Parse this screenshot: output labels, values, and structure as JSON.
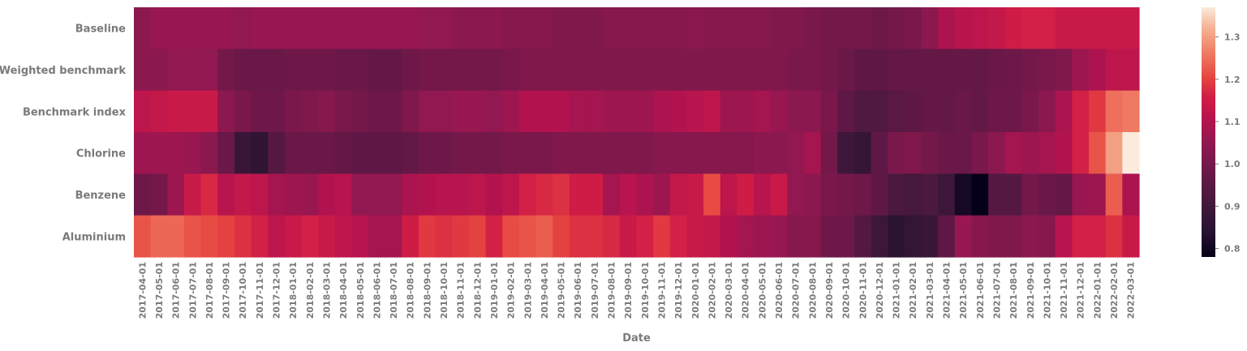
{
  "chart_data": {
    "type": "heatmap",
    "xlabel": "Date",
    "ylabel": "",
    "colormap": "rocket",
    "vmin": 0.78,
    "vmax": 1.37,
    "colorbar_ticks": [
      0.8,
      0.9,
      1.0,
      1.1,
      1.2,
      1.3
    ],
    "colorbar_tick_labels": [
      "0.8",
      "0.9",
      "1.0",
      "1.1",
      "1.2",
      "1.3"
    ],
    "rows": [
      "Baseline",
      "Weighted benchmark",
      "Benchmark index",
      "Chlorine",
      "Benzene",
      "Aluminium"
    ],
    "x": [
      "2017-04-01",
      "2017-05-01",
      "2017-06-01",
      "2017-07-01",
      "2017-08-01",
      "2017-09-01",
      "2017-10-01",
      "2017-11-01",
      "2017-12-01",
      "2018-01-01",
      "2018-02-01",
      "2018-03-01",
      "2018-04-01",
      "2018-05-01",
      "2018-06-01",
      "2018-07-01",
      "2018-08-01",
      "2018-09-01",
      "2018-10-01",
      "2018-11-01",
      "2018-12-01",
      "2019-01-01",
      "2019-02-01",
      "2019-03-01",
      "2019-04-01",
      "2019-05-01",
      "2019-06-01",
      "2019-07-01",
      "2019-08-01",
      "2019-09-01",
      "2019-10-01",
      "2019-11-01",
      "2019-12-01",
      "2020-01-01",
      "2020-02-01",
      "2020-03-01",
      "2020-04-01",
      "2020-05-01",
      "2020-06-01",
      "2020-07-01",
      "2020-08-01",
      "2020-09-01",
      "2020-10-01",
      "2020-11-01",
      "2020-12-01",
      "2021-01-01",
      "2021-02-01",
      "2021-03-01",
      "2021-04-01",
      "2021-05-01",
      "2021-06-01",
      "2021-07-01",
      "2021-08-01",
      "2021-09-01",
      "2021-10-01",
      "2021-11-01",
      "2021-12-01",
      "2022-01-01",
      "2022-02-01",
      "2022-03-01"
    ],
    "values": [
      [
        1.04,
        1.06,
        1.06,
        1.06,
        1.06,
        1.06,
        1.05,
        1.06,
        1.06,
        1.06,
        1.06,
        1.06,
        1.06,
        1.06,
        1.06,
        1.06,
        1.06,
        1.05,
        1.05,
        1.04,
        1.04,
        1.04,
        1.03,
        1.03,
        1.03,
        1.02,
        1.02,
        1.02,
        1.03,
        1.03,
        1.03,
        1.03,
        1.03,
        1.04,
        1.03,
        1.03,
        1.03,
        1.03,
        1.02,
        1.02,
        1.01,
        1.0,
        1.0,
        1.0,
        0.99,
        1.0,
        1.01,
        1.04,
        1.09,
        1.11,
        1.12,
        1.13,
        1.15,
        1.16,
        1.16,
        1.14,
        1.14,
        1.14,
        1.14,
        1.14
      ],
      [
        1.04,
        1.04,
        1.05,
        1.05,
        1.05,
        1.0,
        0.98,
        0.98,
        0.98,
        0.99,
        0.99,
        0.99,
        0.98,
        0.98,
        0.97,
        0.97,
        0.99,
        1.0,
        1.0,
        1.0,
        1.0,
        1.0,
        1.01,
        1.02,
        1.02,
        1.02,
        1.02,
        1.02,
        1.02,
        1.02,
        1.02,
        1.02,
        1.02,
        1.02,
        1.02,
        1.02,
        1.02,
        1.02,
        1.02,
        1.01,
        1.01,
        1.0,
        0.98,
        0.96,
        0.96,
        0.97,
        0.97,
        0.97,
        0.97,
        0.97,
        0.97,
        0.98,
        0.99,
        1.0,
        1.01,
        1.02,
        1.07,
        1.09,
        1.12,
        1.12
      ],
      [
        1.12,
        1.13,
        1.14,
        1.14,
        1.14,
        1.04,
        1.01,
        0.99,
        0.99,
        1.01,
        1.02,
        1.03,
        1.01,
        1.0,
        0.99,
        0.99,
        1.02,
        1.05,
        1.05,
        1.06,
        1.06,
        1.05,
        1.07,
        1.1,
        1.1,
        1.1,
        1.08,
        1.08,
        1.07,
        1.07,
        1.07,
        1.09,
        1.1,
        1.11,
        1.12,
        1.07,
        1.07,
        1.08,
        1.06,
        1.04,
        1.04,
        1.01,
        0.96,
        0.93,
        0.93,
        0.95,
        0.96,
        0.97,
        0.97,
        0.98,
        0.97,
        0.99,
        0.99,
        1.01,
        1.04,
        1.09,
        1.16,
        1.19,
        1.25,
        1.26
      ],
      [
        1.07,
        1.07,
        1.07,
        1.06,
        1.04,
        0.98,
        0.88,
        0.86,
        0.94,
        0.98,
        0.98,
        0.98,
        0.97,
        0.96,
        0.96,
        0.96,
        0.97,
        0.99,
        0.99,
        1.0,
        1.0,
        1.0,
        1.01,
        1.01,
        1.01,
        1.02,
        1.02,
        1.02,
        1.02,
        1.02,
        1.02,
        1.03,
        1.03,
        1.03,
        1.03,
        1.03,
        1.03,
        1.04,
        1.04,
        1.05,
        1.08,
        1.0,
        0.89,
        0.87,
        0.96,
        1.01,
        1.02,
        1.0,
        0.98,
        0.98,
        1.01,
        1.04,
        1.08,
        1.07,
        1.08,
        1.1,
        1.16,
        1.22,
        1.3,
        1.37
      ],
      [
        0.99,
        1.0,
        1.07,
        1.14,
        1.17,
        1.11,
        1.13,
        1.12,
        1.08,
        1.07,
        1.06,
        1.1,
        1.11,
        1.05,
        1.05,
        1.05,
        1.09,
        1.1,
        1.11,
        1.11,
        1.12,
        1.1,
        1.12,
        1.16,
        1.17,
        1.18,
        1.15,
        1.15,
        1.08,
        1.11,
        1.09,
        1.07,
        1.13,
        1.14,
        1.21,
        1.12,
        1.15,
        1.11,
        1.14,
        1.05,
        1.04,
        1.01,
        1.0,
        0.99,
        0.96,
        0.92,
        0.91,
        0.92,
        0.89,
        0.81,
        0.78,
        0.94,
        0.94,
        1.0,
        0.98,
        0.97,
        1.06,
        1.07,
        1.23,
        1.09
      ],
      [
        1.22,
        1.24,
        1.24,
        1.22,
        1.21,
        1.2,
        1.18,
        1.16,
        1.12,
        1.14,
        1.16,
        1.14,
        1.12,
        1.11,
        1.08,
        1.08,
        1.15,
        1.19,
        1.18,
        1.19,
        1.2,
        1.16,
        1.21,
        1.22,
        1.23,
        1.2,
        1.18,
        1.18,
        1.17,
        1.14,
        1.16,
        1.19,
        1.16,
        1.14,
        1.13,
        1.1,
        1.08,
        1.07,
        1.06,
        1.03,
        1.03,
        0.99,
        0.99,
        0.94,
        0.89,
        0.85,
        0.87,
        0.88,
        0.96,
        1.06,
        1.03,
        1.02,
        1.02,
        1.04,
        1.03,
        1.11,
        1.16,
        1.16,
        1.18,
        1.14
      ]
    ]
  }
}
